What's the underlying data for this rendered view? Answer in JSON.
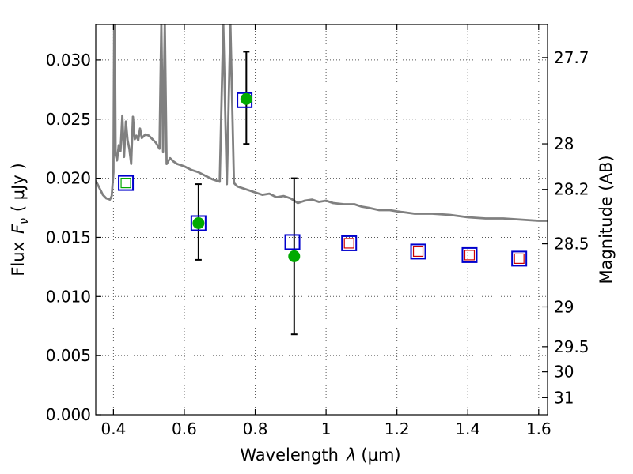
{
  "chart_data": {
    "type": "scatter",
    "xlabel_prefix": "Wavelength",
    "xlabel_unit": "(μm)",
    "ylabel_prefix": "Flux",
    "ylabel_unit": "( μJy )",
    "ylabel_right": "Magnitude (AB)",
    "xlim": [
      0.35,
      1.625
    ],
    "ylim": [
      0.0,
      0.033
    ],
    "grid": true,
    "x_ticks": [
      {
        "value": 0.4,
        "label": "0.4"
      },
      {
        "value": 0.6,
        "label": "0.6"
      },
      {
        "value": 0.8,
        "label": "0.8"
      },
      {
        "value": 1.0,
        "label": "1"
      },
      {
        "value": 1.2,
        "label": "1.2"
      },
      {
        "value": 1.4,
        "label": "1.4"
      },
      {
        "value": 1.6,
        "label": "1.6"
      }
    ],
    "y_ticks": [
      {
        "value": 0.0,
        "label": "0.000"
      },
      {
        "value": 0.005,
        "label": "0.005"
      },
      {
        "value": 0.01,
        "label": "0.010"
      },
      {
        "value": 0.015,
        "label": "0.015"
      },
      {
        "value": 0.02,
        "label": "0.020"
      },
      {
        "value": 0.025,
        "label": "0.025"
      },
      {
        "value": 0.03,
        "label": "0.030"
      }
    ],
    "right_ticks": [
      {
        "value": 27.7,
        "label": "27.7"
      },
      {
        "value": 28.0,
        "label": "28"
      },
      {
        "value": 28.2,
        "label": "28.2"
      },
      {
        "value": 28.5,
        "label": "28.5"
      },
      {
        "value": 29.0,
        "label": "29"
      },
      {
        "value": 29.5,
        "label": "29.5"
      },
      {
        "value": 30.0,
        "label": "30"
      },
      {
        "value": 31.0,
        "label": "31"
      }
    ],
    "colors": {
      "spectrum": "#808080",
      "observed": "#00aa00",
      "model_box": "#0000cc",
      "model_inner": "#cc0000",
      "errorbar": "#000000",
      "grid": "#555555"
    },
    "series": [
      {
        "role": "template_spectrum",
        "x": [
          0.35,
          0.36,
          0.37,
          0.38,
          0.39,
          0.395,
          0.4,
          0.402,
          0.404,
          0.406,
          0.41,
          0.415,
          0.42,
          0.425,
          0.43,
          0.435,
          0.44,
          0.445,
          0.45,
          0.455,
          0.46,
          0.465,
          0.47,
          0.475,
          0.48,
          0.49,
          0.5,
          0.51,
          0.52,
          0.53,
          0.535,
          0.54,
          0.545,
          0.55,
          0.56,
          0.57,
          0.58,
          0.6,
          0.62,
          0.64,
          0.66,
          0.68,
          0.7,
          0.71,
          0.72,
          0.73,
          0.74,
          0.75,
          0.76,
          0.78,
          0.8,
          0.82,
          0.84,
          0.86,
          0.88,
          0.9,
          0.92,
          0.94,
          0.96,
          0.98,
          1.0,
          1.02,
          1.05,
          1.08,
          1.1,
          1.12,
          1.15,
          1.18,
          1.2,
          1.25,
          1.3,
          1.35,
          1.4,
          1.45,
          1.5,
          1.55,
          1.6,
          1.625
        ],
        "y": [
          0.0198,
          0.0192,
          0.0186,
          0.0183,
          0.0182,
          0.0185,
          0.0205,
          0.033,
          0.033,
          0.022,
          0.0215,
          0.0228,
          0.0223,
          0.0253,
          0.0218,
          0.0248,
          0.0232,
          0.0225,
          0.0212,
          0.0252,
          0.0233,
          0.0236,
          0.0232,
          0.0242,
          0.0234,
          0.0237,
          0.0236,
          0.0233,
          0.023,
          0.0225,
          0.033,
          0.0222,
          0.033,
          0.0212,
          0.0217,
          0.0214,
          0.0212,
          0.021,
          0.0207,
          0.0205,
          0.0202,
          0.0199,
          0.0197,
          0.033,
          0.0195,
          0.033,
          0.0196,
          0.0193,
          0.0192,
          0.019,
          0.0188,
          0.0186,
          0.0187,
          0.0184,
          0.0185,
          0.0183,
          0.0179,
          0.0181,
          0.0182,
          0.018,
          0.0181,
          0.0179,
          0.0178,
          0.0178,
          0.0176,
          0.0175,
          0.0173,
          0.0173,
          0.0172,
          0.017,
          0.017,
          0.0169,
          0.0167,
          0.0166,
          0.0166,
          0.0165,
          0.0164,
          0.0164
        ]
      },
      {
        "role": "model_photometry",
        "x": [
          0.435,
          0.64,
          0.77,
          0.905,
          1.065,
          1.26,
          1.405,
          1.545
        ],
        "y": [
          0.0196,
          0.0162,
          0.0266,
          0.0146,
          0.0145,
          0.0138,
          0.0135,
          0.0132
        ]
      },
      {
        "role": "observed_photometry",
        "x": [
          0.435,
          0.64,
          0.775,
          0.91
        ],
        "y": [
          0.0196,
          0.0162,
          0.0267,
          0.0134
        ],
        "err_low": [
          0.0,
          0.0031,
          0.0038,
          0.0066
        ],
        "err_high": [
          0.0,
          0.0033,
          0.004,
          0.0066
        ]
      }
    ]
  }
}
